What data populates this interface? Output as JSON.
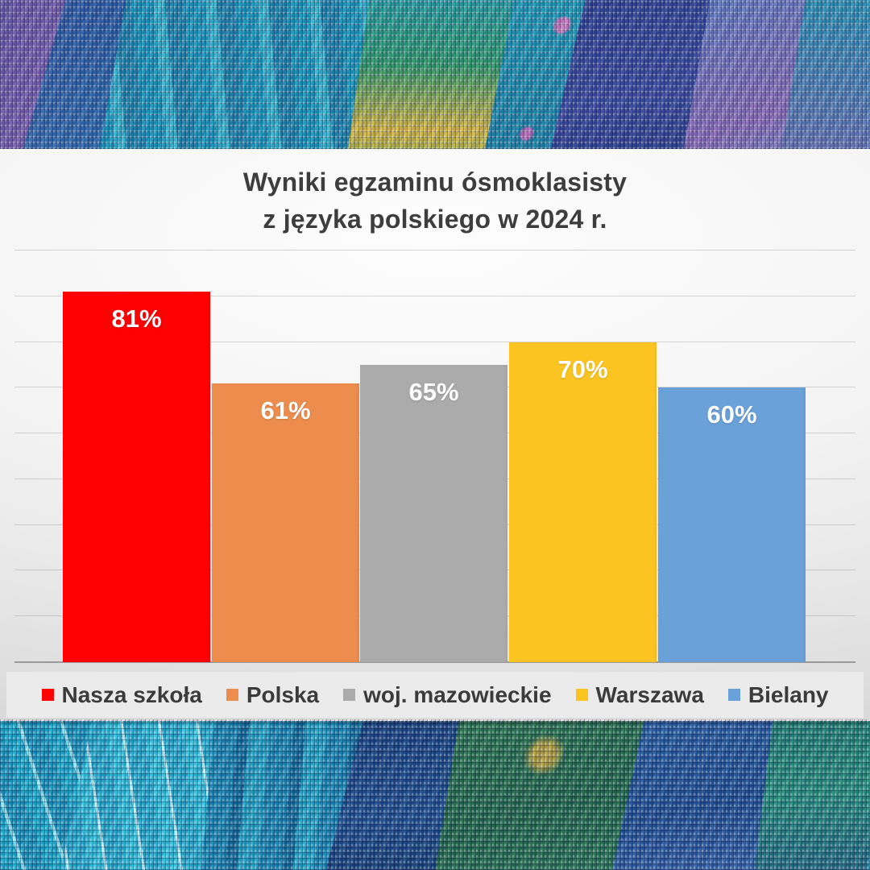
{
  "chart_data": {
    "type": "bar",
    "title": "Wyniki egzaminu ósmoklasisty z języka polskiego w 2024 r.",
    "title_lines": [
      "Wyniki egzaminu ósmoklasisty",
      "z języka polskiego w 2024 r."
    ],
    "categories": [
      "Nasza szkoła",
      "Polska",
      "woj. mazowieckie",
      "Warszawa",
      "Bielany"
    ],
    "values": [
      81,
      61,
      65,
      70,
      60
    ],
    "unit": "%",
    "bars": [
      {
        "label": "Nasza szkoła",
        "value": 81,
        "display": "81%",
        "color": "#fe0100"
      },
      {
        "label": "Polska",
        "value": 61,
        "display": "61%",
        "color": "#ec8c4d"
      },
      {
        "label": "woj. mazowieckie",
        "value": 65,
        "display": "65%",
        "color": "#ababab"
      },
      {
        "label": "Warszawa",
        "value": 70,
        "display": "70%",
        "color": "#fcc421"
      },
      {
        "label": "Bielany",
        "value": 60,
        "display": "60%",
        "color": "#6aa1d8"
      }
    ],
    "xlabel": "",
    "ylabel": "",
    "ylim": [
      0,
      90
    ],
    "gridline_step": 10,
    "grid": true,
    "legend_position": "bottom",
    "label_color": "#ffffff",
    "title_color": "#3d3d3d"
  }
}
